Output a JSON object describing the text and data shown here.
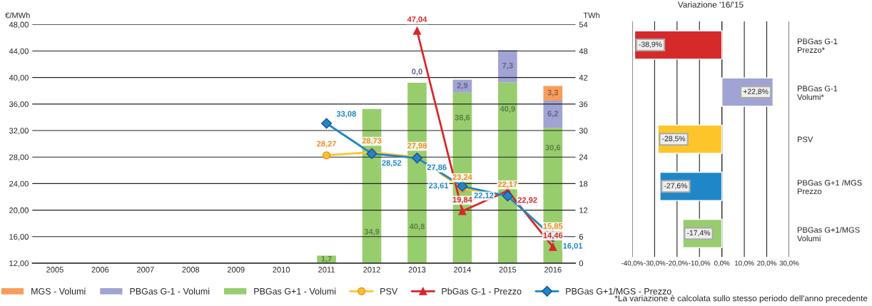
{
  "chart_data": [
    {
      "type": "bar",
      "stacked": true,
      "ylabel": "€/MWh",
      "y2label": "TWh",
      "categories": [
        "2005",
        "2006",
        "2007",
        "2008",
        "2009",
        "2010",
        "2011",
        "2012",
        "2013",
        "2014",
        "2015",
        "2016"
      ],
      "ylim": [
        12,
        48
      ],
      "yticks": [
        {
          "value": 12,
          "label": "12,00"
        },
        {
          "value": 16,
          "label": "16,00"
        },
        {
          "value": 20,
          "label": "20,00"
        },
        {
          "value": 24,
          "label": "24,00"
        },
        {
          "value": 28,
          "label": "28,00"
        },
        {
          "value": 32,
          "label": "32,00"
        },
        {
          "value": 36,
          "label": "36,00"
        },
        {
          "value": 40,
          "label": "40,00"
        },
        {
          "value": 44,
          "label": "44,00"
        },
        {
          "value": 48,
          "label": "48,00"
        }
      ],
      "y2lim": [
        0,
        54
      ],
      "y2ticks": [
        0,
        6,
        12,
        18,
        24,
        30,
        36,
        42,
        48,
        54
      ],
      "grid": "y",
      "legend": "bottom",
      "series": [
        {
          "name": "PBGas G+1 - Volumi",
          "type": "bar",
          "axis": "y2",
          "color": "#98cd6e",
          "values": [
            null,
            null,
            null,
            null,
            null,
            null,
            1.7,
            34.9,
            40.8,
            38.6,
            40.9,
            30.6
          ],
          "value_labels": [
            null,
            null,
            null,
            null,
            null,
            null,
            "1,7",
            "34,9",
            "40,8",
            "38,6",
            "40,9",
            "30,6"
          ]
        },
        {
          "name": "PBGas G-1 - Volumi",
          "type": "bar",
          "axis": "y2",
          "color": "#a0a3d3",
          "values": [
            null,
            null,
            null,
            null,
            null,
            null,
            null,
            null,
            0.0,
            2.9,
            7.3,
            6.2
          ],
          "value_labels": [
            null,
            null,
            null,
            null,
            null,
            null,
            null,
            null,
            "0,0",
            "2,9",
            "7,3",
            "6,2"
          ]
        },
        {
          "name": "MGS - Volumi",
          "type": "bar",
          "axis": "y2",
          "color": "#f79d5c",
          "values": [
            null,
            null,
            null,
            null,
            null,
            null,
            null,
            null,
            null,
            null,
            null,
            3.3
          ],
          "value_labels": [
            null,
            null,
            null,
            null,
            null,
            null,
            null,
            null,
            null,
            null,
            null,
            "3,3"
          ]
        },
        {
          "name": "PSV",
          "type": "line",
          "marker": "circle",
          "color": "#fdc52a",
          "values": [
            null,
            null,
            null,
            null,
            null,
            null,
            28.27,
            28.73,
            27.98,
            23.24,
            22.17,
            15.85
          ],
          "value_labels": [
            null,
            null,
            null,
            null,
            null,
            null,
            "28,27",
            "28,73",
            "27,98",
            "23,24",
            "22,17",
            "15,85"
          ]
        },
        {
          "name": "PbGas G-1 - Prezzo",
          "type": "line",
          "marker": "triangle",
          "color": "#d9262b",
          "values": [
            null,
            null,
            null,
            null,
            null,
            null,
            null,
            null,
            47.04,
            19.84,
            22.92,
            14.46
          ],
          "value_labels": [
            null,
            null,
            null,
            null,
            null,
            null,
            null,
            null,
            "47,04",
            "19,84",
            "22,92",
            "14,46"
          ]
        },
        {
          "name": "PBGas G+1/MGS - Prezzo",
          "type": "line",
          "marker": "diamond",
          "color": "#1f87c8",
          "values": [
            null,
            null,
            null,
            null,
            null,
            null,
            33.08,
            28.52,
            27.86,
            23.61,
            22.12,
            16.01
          ],
          "value_labels": [
            null,
            null,
            null,
            null,
            null,
            null,
            "33,08",
            "28,52",
            "27,86",
            "23,61",
            "22,12",
            "16,01"
          ]
        }
      ]
    },
    {
      "type": "bar",
      "orientation": "horizontal",
      "title": "Variazione '16/'15",
      "categories": [
        "PBGas G-1\nPrezzo*",
        "PBGas G-1\nVolumi*",
        "PSV",
        "PBGas G+1 /MGS\nPrezzo",
        "PBGas G+1/MGS\nVolumi"
      ],
      "values": [
        -38.9,
        22.8,
        -28.5,
        -27.6,
        -17.4
      ],
      "colors": [
        "#d62a2a",
        "#a0a3d3",
        "#fdc52a",
        "#1f87c8",
        "#98cd6e"
      ],
      "value_labels": [
        "-38,9%",
        "+22,8%",
        "-28,5%",
        "-27,6%",
        "-17,4%"
      ],
      "xlim": [
        -40,
        30
      ],
      "xticks": [
        {
          "value": -40,
          "label": "-40,0%"
        },
        {
          "value": -30,
          "label": "-30,0%"
        },
        {
          "value": -20,
          "label": "-20,0%"
        },
        {
          "value": -10,
          "label": "-10,0%"
        },
        {
          "value": 0,
          "label": "0,0%"
        },
        {
          "value": 10,
          "label": "10,0%"
        },
        {
          "value": 20,
          "label": "20,0%"
        },
        {
          "value": 30,
          "label": "30,0%"
        }
      ],
      "grid": "x",
      "annotations": [
        "*La variazione è calcolata sullo stesso periodo dell'anno precedente"
      ]
    }
  ]
}
